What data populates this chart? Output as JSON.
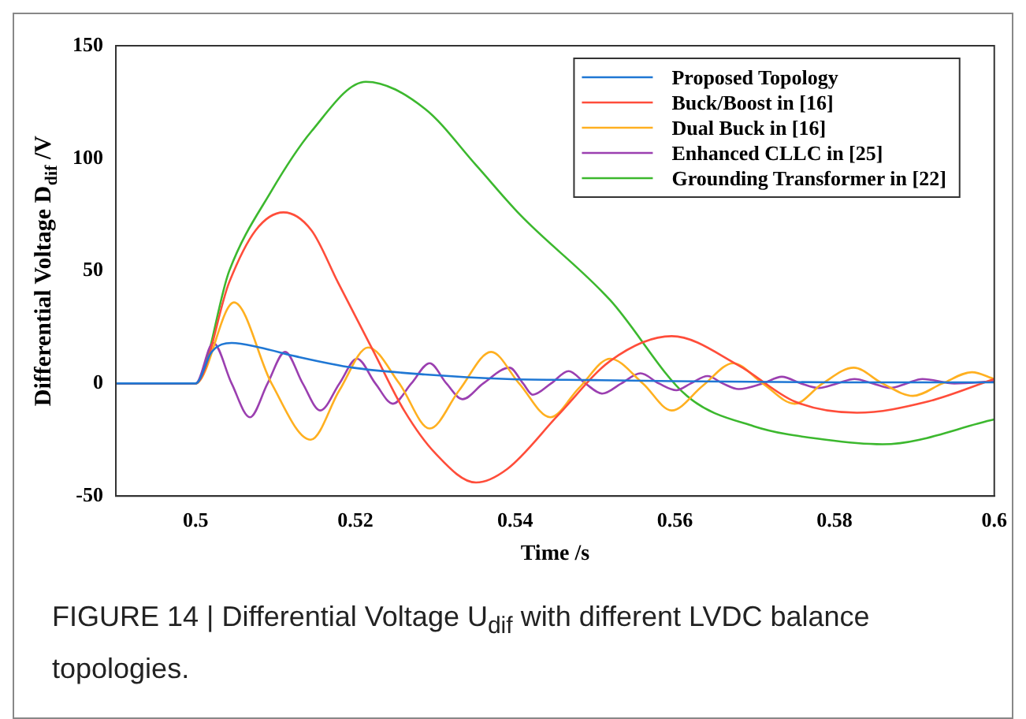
{
  "chart_data": {
    "type": "line",
    "xlabel": "Time /s",
    "ylabel": "Differential Voltage D$_{dif}$ /V",
    "xlim": [
      0.49,
      0.6
    ],
    "xticks": [
      0.5,
      0.52,
      0.54,
      0.56,
      0.58,
      0.6
    ],
    "ylim": [
      -50,
      150
    ],
    "yticks": [
      -50,
      0,
      50,
      100,
      150
    ],
    "grid": false,
    "legend": "top right",
    "marker": "none",
    "line_style": "solid",
    "annotations": [
      "FIGURE 14 | Differential Voltage U$_{dif}$ with different LVDC balance topologies."
    ],
    "series": [
      {
        "name": "Proposed Topology",
        "color": "#1f77d4",
        "x": [
          0.49,
          0.5,
          0.502,
          0.5045,
          0.508,
          0.5126,
          0.5197,
          0.5287,
          0.539,
          0.55,
          0.56,
          0.58,
          0.6
        ],
        "values": [
          0,
          0,
          14,
          18,
          16,
          12,
          7,
          4,
          2,
          1.5,
          1,
          0.5,
          0.5
        ]
      },
      {
        "name": "Buck/Boost in [16]",
        "color": "#ff4d3a",
        "x": [
          0.49,
          0.5,
          0.5042,
          0.5075,
          0.511,
          0.5145,
          0.5178,
          0.5223,
          0.5261,
          0.53,
          0.5351,
          0.539,
          0.5454,
          0.5519,
          0.5596,
          0.568,
          0.575,
          0.5828,
          0.5917,
          0.6
        ],
        "values": [
          0,
          0,
          45,
          68,
          76,
          68,
          45,
          14,
          -12,
          -31,
          -44,
          -38,
          -14,
          10,
          21,
          8,
          -8,
          -13,
          -8,
          2
        ]
      },
      {
        "name": "Dual Buck in [16]",
        "color": "#ffb020",
        "x": [
          0.49,
          0.5,
          0.5048,
          0.5095,
          0.5144,
          0.518,
          0.5216,
          0.5255,
          0.5293,
          0.533,
          0.537,
          0.5405,
          0.5444,
          0.548,
          0.5519,
          0.556,
          0.5596,
          0.5635,
          0.5673,
          0.571,
          0.575,
          0.5785,
          0.5824,
          0.586,
          0.5898,
          0.5935,
          0.5972,
          0.6
        ],
        "values": [
          0,
          0,
          36,
          0,
          -25,
          -3,
          16,
          0,
          -20,
          -3,
          14,
          0,
          -15,
          -2,
          11,
          0,
          -12,
          -1,
          9,
          0,
          -9,
          0,
          7,
          0,
          -5.5,
          0,
          5,
          2
        ]
      },
      {
        "name": "Enhanced CLLC in [25]",
        "color": "#9b3fb0",
        "x": [
          0.49,
          0.5,
          0.5022,
          0.5045,
          0.5068,
          0.509,
          0.5112,
          0.5134,
          0.5156,
          0.518,
          0.5202,
          0.5225,
          0.5247,
          0.527,
          0.5293,
          0.5314,
          0.5334,
          0.536,
          0.5393,
          0.541,
          0.5422,
          0.5445,
          0.5467,
          0.5488,
          0.5509,
          0.5533,
          0.5557,
          0.558,
          0.5602,
          0.562,
          0.5641,
          0.566,
          0.568,
          0.571,
          0.5734,
          0.5758,
          0.578,
          0.5803,
          0.5825,
          0.5848,
          0.587,
          0.589,
          0.591,
          0.595,
          0.6
        ],
        "values": [
          0,
          0,
          18,
          0,
          -15,
          0,
          14,
          0,
          -12,
          0,
          11,
          0,
          -9,
          0,
          9,
          0,
          -7,
          0,
          7,
          0,
          -5,
          0,
          5.5,
          0,
          -4.5,
          0,
          4.5,
          0,
          -3,
          0,
          3.3,
          0,
          -2.5,
          0,
          3,
          0,
          -2,
          0,
          2,
          0,
          -2,
          0,
          2,
          0,
          1
        ]
      },
      {
        "name": "Grounding Transformer in [22]",
        "color": "#3cb82e",
        "x": [
          0.49,
          0.5,
          0.5042,
          0.5094,
          0.5145,
          0.5213,
          0.5287,
          0.5351,
          0.5406,
          0.5519,
          0.5615,
          0.5699,
          0.5789,
          0.586,
          0.6
        ],
        "values": [
          0,
          0,
          50,
          85,
          112,
          134,
          122,
          97,
          75,
          37,
          -5.5,
          -19,
          -25,
          -27,
          -16
        ]
      }
    ]
  }
}
